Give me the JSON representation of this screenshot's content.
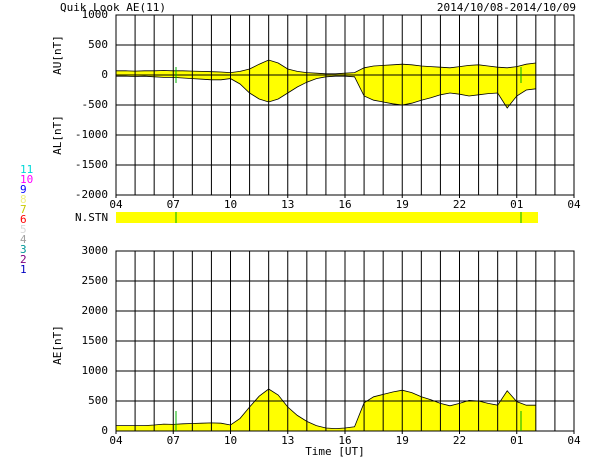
{
  "title": "Quik Look AE(11)",
  "date": "2014/10/08-2014/10/09",
  "nstn_label": "N.STN",
  "stations": [
    {
      "name": "11",
      "color": "#00d8d8"
    },
    {
      "name": "10",
      "color": "#ff00ff"
    },
    {
      "name": "9",
      "color": "#0000ff"
    },
    {
      "name": "8",
      "color": "#f0f080"
    },
    {
      "name": "7",
      "color": "#c8c800"
    },
    {
      "name": "6",
      "color": "#ff0000"
    },
    {
      "name": "5",
      "color": "#d8d8d8"
    },
    {
      "name": "4",
      "color": "#a0a0a0"
    },
    {
      "name": "3",
      "color": "#009898"
    },
    {
      "name": "2",
      "color": "#800080"
    },
    {
      "name": "1",
      "color": "#0000c0"
    }
  ],
  "chart_data": [
    {
      "type": "area",
      "grid": true,
      "grid_minor_step": 1,
      "x": [
        4,
        4.5,
        5,
        5.5,
        6,
        6.5,
        7,
        7.5,
        8,
        8.5,
        9,
        9.5,
        10,
        10.5,
        11,
        11.5,
        12,
        12.5,
        13,
        13.5,
        14,
        14.5,
        15,
        15.5,
        16,
        16.5,
        17,
        17.5,
        18,
        18.5,
        19,
        19.5,
        20,
        20.5,
        21,
        21.5,
        22,
        22.5,
        23,
        23.5,
        24,
        24.5,
        25,
        25.5,
        26
      ],
      "xlim": [
        4,
        28
      ],
      "xticks": [
        {
          "value": 4,
          "label": "04"
        },
        {
          "value": 7,
          "label": "07"
        },
        10,
        13,
        16,
        19,
        22,
        {
          "value": 25,
          "label": "01"
        },
        {
          "value": 28,
          "label": "04"
        }
      ],
      "ylim": [
        -2000,
        1000
      ],
      "yticks": [
        -2000,
        -1500,
        -1000,
        -500,
        0,
        500,
        1000
      ],
      "series": [
        {
          "name": "AU[nT]",
          "color": "#ffff00",
          "values": [
            70,
            70,
            65,
            70,
            70,
            75,
            70,
            70,
            65,
            60,
            55,
            50,
            40,
            60,
            100,
            180,
            250,
            200,
            100,
            60,
            40,
            30,
            20,
            20,
            30,
            40,
            120,
            150,
            160,
            170,
            180,
            170,
            150,
            140,
            130,
            120,
            140,
            160,
            170,
            150,
            130,
            120,
            140,
            180,
            200
          ]
        },
        {
          "name": "AL[nT]",
          "color": "#ffff00",
          "values": [
            -20,
            -20,
            -25,
            -20,
            -30,
            -40,
            -40,
            -50,
            -60,
            -70,
            -80,
            -80,
            -60,
            -150,
            -300,
            -400,
            -450,
            -400,
            -300,
            -200,
            -120,
            -60,
            -30,
            -20,
            -20,
            -30,
            -350,
            -420,
            -450,
            -480,
            -500,
            -470,
            -420,
            -380,
            -330,
            -300,
            -320,
            -350,
            -330,
            -310,
            -300,
            -550,
            -350,
            -250,
            -230
          ]
        }
      ]
    },
    {
      "type": "area",
      "grid": true,
      "grid_minor_step": 1,
      "xlabel": "Time [UT]",
      "x": [
        4,
        4.5,
        5,
        5.5,
        6,
        6.5,
        7,
        7.5,
        8,
        8.5,
        9,
        9.5,
        10,
        10.5,
        11,
        11.5,
        12,
        12.5,
        13,
        13.5,
        14,
        14.5,
        15,
        15.5,
        16,
        16.5,
        17,
        17.5,
        18,
        18.5,
        19,
        19.5,
        20,
        20.5,
        21,
        21.5,
        22,
        22.5,
        23,
        23.5,
        24,
        24.5,
        25,
        25.5,
        26
      ],
      "xlim": [
        4,
        28
      ],
      "xticks": [
        {
          "value": 4,
          "label": "04"
        },
        {
          "value": 7,
          "label": "07"
        },
        10,
        13,
        16,
        19,
        22,
        {
          "value": 25,
          "label": "01"
        },
        {
          "value": 28,
          "label": "04"
        }
      ],
      "ylim": [
        0,
        3000
      ],
      "yticks": [
        0,
        500,
        1000,
        1500,
        2000,
        2500,
        3000
      ],
      "series": [
        {
          "name": "AE[nT]",
          "color": "#ffff00",
          "values": [
            90,
            90,
            90,
            90,
            100,
            115,
            110,
            120,
            125,
            130,
            135,
            130,
            100,
            210,
            400,
            580,
            700,
            600,
            400,
            260,
            160,
            90,
            50,
            40,
            50,
            70,
            470,
            570,
            610,
            650,
            680,
            640,
            570,
            520,
            460,
            420,
            460,
            510,
            500,
            460,
            430,
            670,
            490,
            430,
            430
          ]
        }
      ]
    }
  ]
}
